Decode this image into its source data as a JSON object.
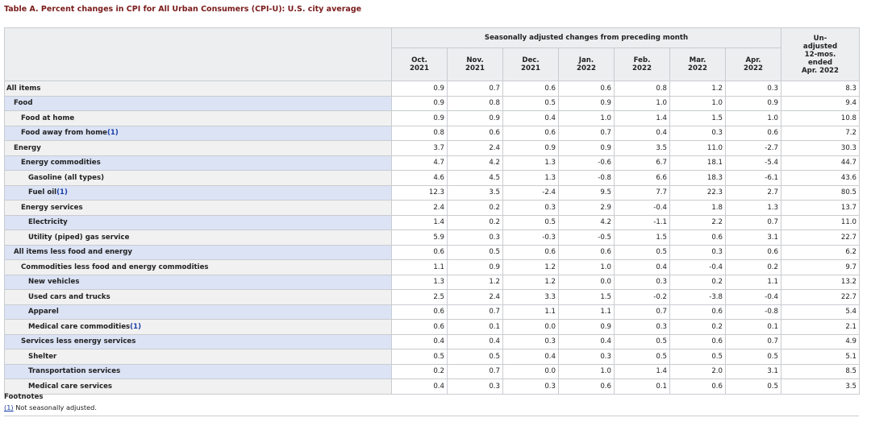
{
  "title": "Table A. Percent changes in CPI for All Urban Consumers (CPI-U): U.S. city average",
  "header": {
    "group_label": "Seasonally adjusted changes from preceding month",
    "months": [
      {
        "month": "Oct.",
        "year": "2021"
      },
      {
        "month": "Nov.",
        "year": "2021"
      },
      {
        "month": "Dec.",
        "year": "2021"
      },
      {
        "month": "Jan.",
        "year": "2022"
      },
      {
        "month": "Feb.",
        "year": "2022"
      },
      {
        "month": "Mar.",
        "year": "2022"
      },
      {
        "month": "Apr.",
        "year": "2022"
      }
    ],
    "unadjusted_lines": [
      "Un-",
      "adjusted",
      "12-mos.",
      "ended",
      "Apr. 2022"
    ]
  },
  "rows": [
    {
      "label": "All items",
      "level": 0,
      "fn": "",
      "values": [
        "0.9",
        "0.7",
        "0.6",
        "0.6",
        "0.8",
        "1.2",
        "0.3",
        "8.3"
      ]
    },
    {
      "label": "Food",
      "level": 1,
      "fn": "",
      "values": [
        "0.9",
        "0.8",
        "0.5",
        "0.9",
        "1.0",
        "1.0",
        "0.9",
        "9.4"
      ]
    },
    {
      "label": "Food at home",
      "level": 2,
      "fn": "",
      "values": [
        "0.9",
        "0.9",
        "0.4",
        "1.0",
        "1.4",
        "1.5",
        "1.0",
        "10.8"
      ]
    },
    {
      "label": "Food away from home",
      "level": 2,
      "fn": "(1)",
      "values": [
        "0.8",
        "0.6",
        "0.6",
        "0.7",
        "0.4",
        "0.3",
        "0.6",
        "7.2"
      ]
    },
    {
      "label": "Energy",
      "level": 1,
      "fn": "",
      "values": [
        "3.7",
        "2.4",
        "0.9",
        "0.9",
        "3.5",
        "11.0",
        "-2.7",
        "30.3"
      ]
    },
    {
      "label": "Energy commodities",
      "level": 2,
      "fn": "",
      "values": [
        "4.7",
        "4.2",
        "1.3",
        "-0.6",
        "6.7",
        "18.1",
        "-5.4",
        "44.7"
      ]
    },
    {
      "label": "Gasoline (all types)",
      "level": 3,
      "fn": "",
      "values": [
        "4.6",
        "4.5",
        "1.3",
        "-0.8",
        "6.6",
        "18.3",
        "-6.1",
        "43.6"
      ]
    },
    {
      "label": "Fuel oil",
      "level": 3,
      "fn": "(1)",
      "values": [
        "12.3",
        "3.5",
        "-2.4",
        "9.5",
        "7.7",
        "22.3",
        "2.7",
        "80.5"
      ]
    },
    {
      "label": "Energy services",
      "level": 2,
      "fn": "",
      "values": [
        "2.4",
        "0.2",
        "0.3",
        "2.9",
        "-0.4",
        "1.8",
        "1.3",
        "13.7"
      ]
    },
    {
      "label": "Electricity",
      "level": 3,
      "fn": "",
      "values": [
        "1.4",
        "0.2",
        "0.5",
        "4.2",
        "-1.1",
        "2.2",
        "0.7",
        "11.0"
      ]
    },
    {
      "label": "Utility (piped) gas service",
      "level": 3,
      "fn": "",
      "values": [
        "5.9",
        "0.3",
        "-0.3",
        "-0.5",
        "1.5",
        "0.6",
        "3.1",
        "22.7"
      ]
    },
    {
      "label": "All items less food and energy",
      "level": 1,
      "fn": "",
      "values": [
        "0.6",
        "0.5",
        "0.6",
        "0.6",
        "0.5",
        "0.3",
        "0.6",
        "6.2"
      ]
    },
    {
      "label": "Commodities less food and energy commodities",
      "level": 2,
      "fn": "",
      "values": [
        "1.1",
        "0.9",
        "1.2",
        "1.0",
        "0.4",
        "-0.4",
        "0.2",
        "9.7"
      ]
    },
    {
      "label": "New vehicles",
      "level": 3,
      "fn": "",
      "values": [
        "1.3",
        "1.2",
        "1.2",
        "0.0",
        "0.3",
        "0.2",
        "1.1",
        "13.2"
      ]
    },
    {
      "label": "Used cars and trucks",
      "level": 3,
      "fn": "",
      "values": [
        "2.5",
        "2.4",
        "3.3",
        "1.5",
        "-0.2",
        "-3.8",
        "-0.4",
        "22.7"
      ]
    },
    {
      "label": "Apparel",
      "level": 3,
      "fn": "",
      "values": [
        "0.6",
        "0.7",
        "1.1",
        "1.1",
        "0.7",
        "0.6",
        "-0.8",
        "5.4"
      ]
    },
    {
      "label": "Medical care commodities",
      "level": 3,
      "fn": "(1)",
      "values": [
        "0.6",
        "0.1",
        "0.0",
        "0.9",
        "0.3",
        "0.2",
        "0.1",
        "2.1"
      ]
    },
    {
      "label": "Services less energy services",
      "level": 2,
      "fn": "",
      "values": [
        "0.4",
        "0.4",
        "0.3",
        "0.4",
        "0.5",
        "0.6",
        "0.7",
        "4.9"
      ]
    },
    {
      "label": "Shelter",
      "level": 3,
      "fn": "",
      "values": [
        "0.5",
        "0.5",
        "0.4",
        "0.3",
        "0.5",
        "0.5",
        "0.5",
        "5.1"
      ]
    },
    {
      "label": "Transportation services",
      "level": 3,
      "fn": "",
      "values": [
        "0.2",
        "0.7",
        "0.0",
        "1.0",
        "1.4",
        "2.0",
        "3.1",
        "8.5"
      ]
    },
    {
      "label": "Medical care services",
      "level": 3,
      "fn": "",
      "values": [
        "0.4",
        "0.3",
        "0.3",
        "0.6",
        "0.1",
        "0.6",
        "0.5",
        "3.5"
      ]
    }
  ],
  "footnotes": {
    "heading": "Footnotes",
    "items": [
      {
        "marker": "(1)",
        "text": " Not seasonally adjusted."
      }
    ]
  },
  "colors": {
    "title": "#7a1a1a",
    "header_bg": "#eceeef",
    "row_label_blue": "#dbe3f5",
    "row_label_gray": "#f1f1f2",
    "border": "#c9ccd0",
    "link": "#1a3fa8"
  }
}
